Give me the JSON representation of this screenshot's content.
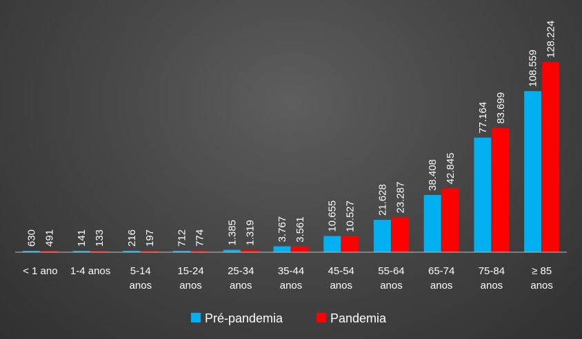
{
  "chart_data": {
    "type": "bar",
    "categories": [
      [
        "< 1 ano"
      ],
      [
        "1-4 anos"
      ],
      [
        "5-14",
        "anos"
      ],
      [
        "15-24",
        "anos"
      ],
      [
        "25-34",
        "anos"
      ],
      [
        "35-44",
        "anos"
      ],
      [
        "45-54",
        "anos"
      ],
      [
        "55-64",
        "anos"
      ],
      [
        "65-74",
        "anos"
      ],
      [
        "75-84",
        "anos"
      ],
      [
        "≥ 85",
        "anos"
      ]
    ],
    "series": [
      {
        "name": "Pré-pandemia",
        "color": "#00b0f0",
        "values": [
          630,
          141,
          216,
          712,
          1385,
          3767,
          10655,
          21628,
          38408,
          77164,
          108559
        ],
        "labels": [
          "630",
          "141",
          "216",
          "712",
          "1.385",
          "3.767",
          "10.655",
          "21.628",
          "38.408",
          "77.164",
          "108.559"
        ]
      },
      {
        "name": "Pandemia",
        "color": "#ff0000",
        "values": [
          491,
          133,
          197,
          774,
          1319,
          3561,
          10527,
          23287,
          42845,
          83699,
          128224
        ],
        "labels": [
          "491",
          "133",
          "197",
          "774",
          "1.319",
          "3.561",
          "10.527",
          "23.287",
          "42.845",
          "83.699",
          "128.224"
        ]
      }
    ],
    "title": "",
    "xlabel": "",
    "ylabel": "",
    "ylim": [
      0,
      128224
    ],
    "grid": false,
    "legend_position": "bottom",
    "axis_color": "#bfbfbf"
  }
}
